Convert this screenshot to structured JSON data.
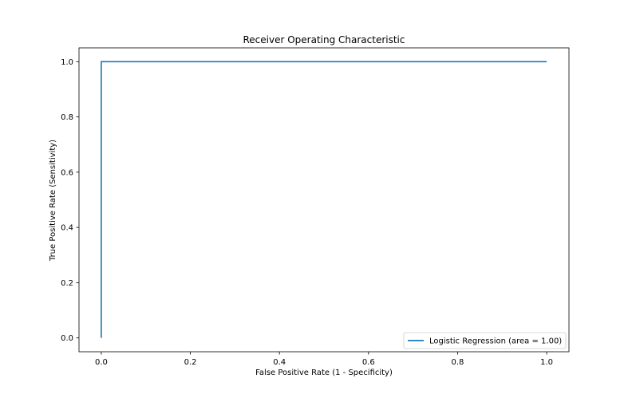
{
  "chart_data": {
    "type": "line",
    "title": "Receiver Operating Characteristic",
    "xlabel": "False Positive Rate (1 - Specificity)",
    "ylabel": "True Positive Rate (Sensitivity)",
    "xlim": [
      -0.05,
      1.05
    ],
    "ylim": [
      -0.05,
      1.05
    ],
    "xticks": [
      "0.0",
      "0.2",
      "0.4",
      "0.6",
      "0.8",
      "1.0"
    ],
    "yticks": [
      "0.0",
      "0.2",
      "0.4",
      "0.6",
      "0.8",
      "1.0"
    ],
    "grid": false,
    "legend_position": "lower-right",
    "series": [
      {
        "name": "Logistic Regression (area = 1.00)",
        "color": "#1f77b4",
        "x": [
          0.0,
          0.0,
          0.0,
          1.0
        ],
        "y": [
          0.0,
          0.976,
          1.0,
          1.0
        ]
      }
    ]
  }
}
